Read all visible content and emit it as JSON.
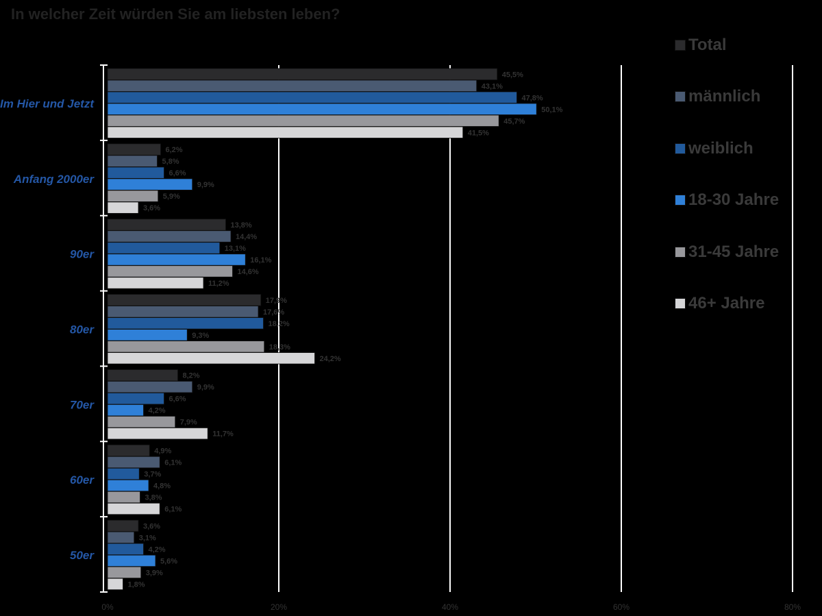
{
  "chart_data": {
    "type": "bar",
    "orientation": "horizontal",
    "title": "In welcher Zeit würden Sie am liebsten leben?",
    "xlabel": "",
    "ylabel": "",
    "xlim": [
      0,
      80
    ],
    "x_ticks": [
      "0%",
      "20%",
      "40%",
      "60%",
      "80%"
    ],
    "grid": true,
    "legend_position": "right",
    "categories": [
      "Im Hier und Jetzt",
      "Anfang 2000er",
      "90er",
      "80er",
      "70er",
      "60er",
      "50er"
    ],
    "series": [
      {
        "name": "Total",
        "color": "#2b2b2d",
        "values": [
          45.5,
          6.2,
          13.8,
          17.9,
          8.2,
          4.9,
          3.6
        ],
        "labels": [
          "45,5%",
          "6,2%",
          "13,8%",
          "17,9%",
          "8,2%",
          "4,9%",
          "3,6%"
        ]
      },
      {
        "name": "männlich",
        "color": "#4a5a72",
        "values": [
          43.1,
          5.8,
          14.4,
          17.6,
          9.9,
          6.1,
          3.1
        ],
        "labels": [
          "43,1%",
          "5,8%",
          "14,4%",
          "17,6%",
          "9,9%",
          "6,1%",
          "3,1%"
        ]
      },
      {
        "name": "weiblich",
        "color": "#215a9c",
        "values": [
          47.8,
          6.6,
          13.1,
          18.2,
          6.6,
          3.7,
          4.2
        ],
        "labels": [
          "47,8%",
          "6,6%",
          "13,1%",
          "18,2%",
          "6,6%",
          "3,7%",
          "4,2%"
        ]
      },
      {
        "name": "18-30 Jahre",
        "color": "#2f80d8",
        "values": [
          50.1,
          9.9,
          16.1,
          9.3,
          4.2,
          4.8,
          5.6
        ],
        "labels": [
          "50,1%",
          "9,9%",
          "16,1%",
          "9,3%",
          "4,2%",
          "4,8%",
          "5,6%"
        ]
      },
      {
        "name": "31-45 Jahre",
        "color": "#98989c",
        "values": [
          45.7,
          5.9,
          14.6,
          18.3,
          7.9,
          3.8,
          3.9
        ],
        "labels": [
          "45,7%",
          "5,9%",
          "14,6%",
          "18,3%",
          "7,9%",
          "3,8%",
          "3,9%"
        ]
      },
      {
        "name": "46+ Jahre",
        "color": "#d6d6d8",
        "values": [
          41.5,
          3.6,
          11.2,
          24.2,
          11.7,
          6.1,
          1.8
        ],
        "labels": [
          "41,5%",
          "3,6%",
          "11,2%",
          "24,2%",
          "11,7%",
          "6,1%",
          "1,8%"
        ]
      }
    ]
  }
}
